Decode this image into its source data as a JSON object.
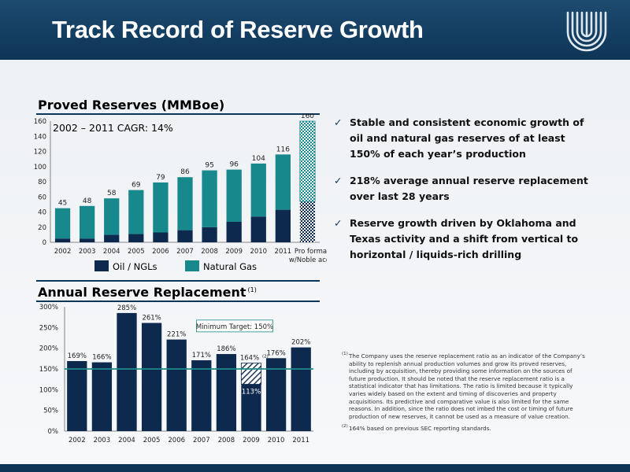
{
  "header": {
    "title": "Track Record of Reserve Growth"
  },
  "proved": {
    "title": "Proved Reserves (MMBoe)",
    "cagr": "2002 – 2011 CAGR: 14%",
    "legend": [
      "Oil / NGLs",
      "Natural Gas"
    ]
  },
  "replacement": {
    "title": "Annual Reserve Replacement",
    "title_note": "(1)",
    "target_label": "Minimum Target: 150%"
  },
  "bullets": [
    "Stable and consistent economic growth of oil and natural gas reserves of at least 150% of each year’s production",
    "218% average annual reserve replacement over last 28 years",
    "Reserve growth driven by Oklahoma and Texas activity and a shift from vertical to horizontal / liquids-rich drilling"
  ],
  "footnotes": [
    {
      "mark": "(1)",
      "text": "The Company uses the reserve replacement ratio as an indicator of the Company’s ability to replenish annual production volumes and grow its proved reserves, including by acquisition, thereby providing some information on the sources of future production. It should be noted that the reserve replacement ratio is a statistical indicator that has limitations. The ratio is limited because it typically varies widely based on the extent and timing of discoveries and property acquisitions. Its predictive and comparative value is also limited for the same reasons. In addition, since the ratio does not imbed the cost or timing of future production of new reserves, it cannot be used as a measure of value creation."
    },
    {
      "mark": "(2)",
      "text": "164% based on previous SEC reporting standards."
    }
  ],
  "colors": {
    "navy": "#0d2a4e",
    "teal": "#17898c",
    "target_line": "#1e8a86",
    "header": "#0d3556"
  },
  "chart_data": [
    {
      "type": "bar",
      "stacked": true,
      "title": "Proved Reserves (MMBoe)",
      "categories": [
        "2002",
        "2003",
        "2004",
        "2005",
        "2006",
        "2007",
        "2008",
        "2009",
        "2010",
        "2011",
        "Pro forma w/Noble acq."
      ],
      "series": [
        {
          "name": "Oil / NGLs",
          "values": [
            5,
            5,
            10,
            11,
            13,
            16,
            20,
            27,
            34,
            43,
            54
          ]
        },
        {
          "name": "Natural Gas",
          "values": [
            40,
            43,
            48,
            58,
            66,
            70,
            75,
            69,
            70,
            73,
            106
          ]
        }
      ],
      "totals": [
        45,
        48,
        58,
        69,
        79,
        86,
        95,
        96,
        104,
        116,
        160
      ],
      "ylim": [
        0,
        160
      ],
      "yticks": [
        0,
        20,
        40,
        60,
        80,
        100,
        120,
        140,
        160
      ],
      "hatched_category": "Pro forma w/Noble acq.",
      "annotation": "2002 – 2011 CAGR: 14%",
      "legend": "bottom"
    },
    {
      "type": "bar",
      "title": "Annual Reserve Replacement",
      "categories": [
        "2002",
        "2003",
        "2004",
        "2005",
        "2006",
        "2007",
        "2008",
        "2009",
        "2010",
        "2011"
      ],
      "values": [
        169,
        166,
        285,
        261,
        221,
        171,
        186,
        113,
        176,
        202
      ],
      "labels": [
        "169%",
        "166%",
        "285%",
        "261%",
        "221%",
        "171%",
        "186%",
        "113%",
        "176%",
        "202%"
      ],
      "alt_2009": {
        "value": 164,
        "label": "164%",
        "note": "(2)"
      },
      "ylim": [
        0,
        300
      ],
      "yticks": [
        "0%",
        "50%",
        "100%",
        "150%",
        "200%",
        "250%",
        "300%"
      ],
      "target": 150,
      "target_label": "Minimum Target: 150%"
    }
  ]
}
